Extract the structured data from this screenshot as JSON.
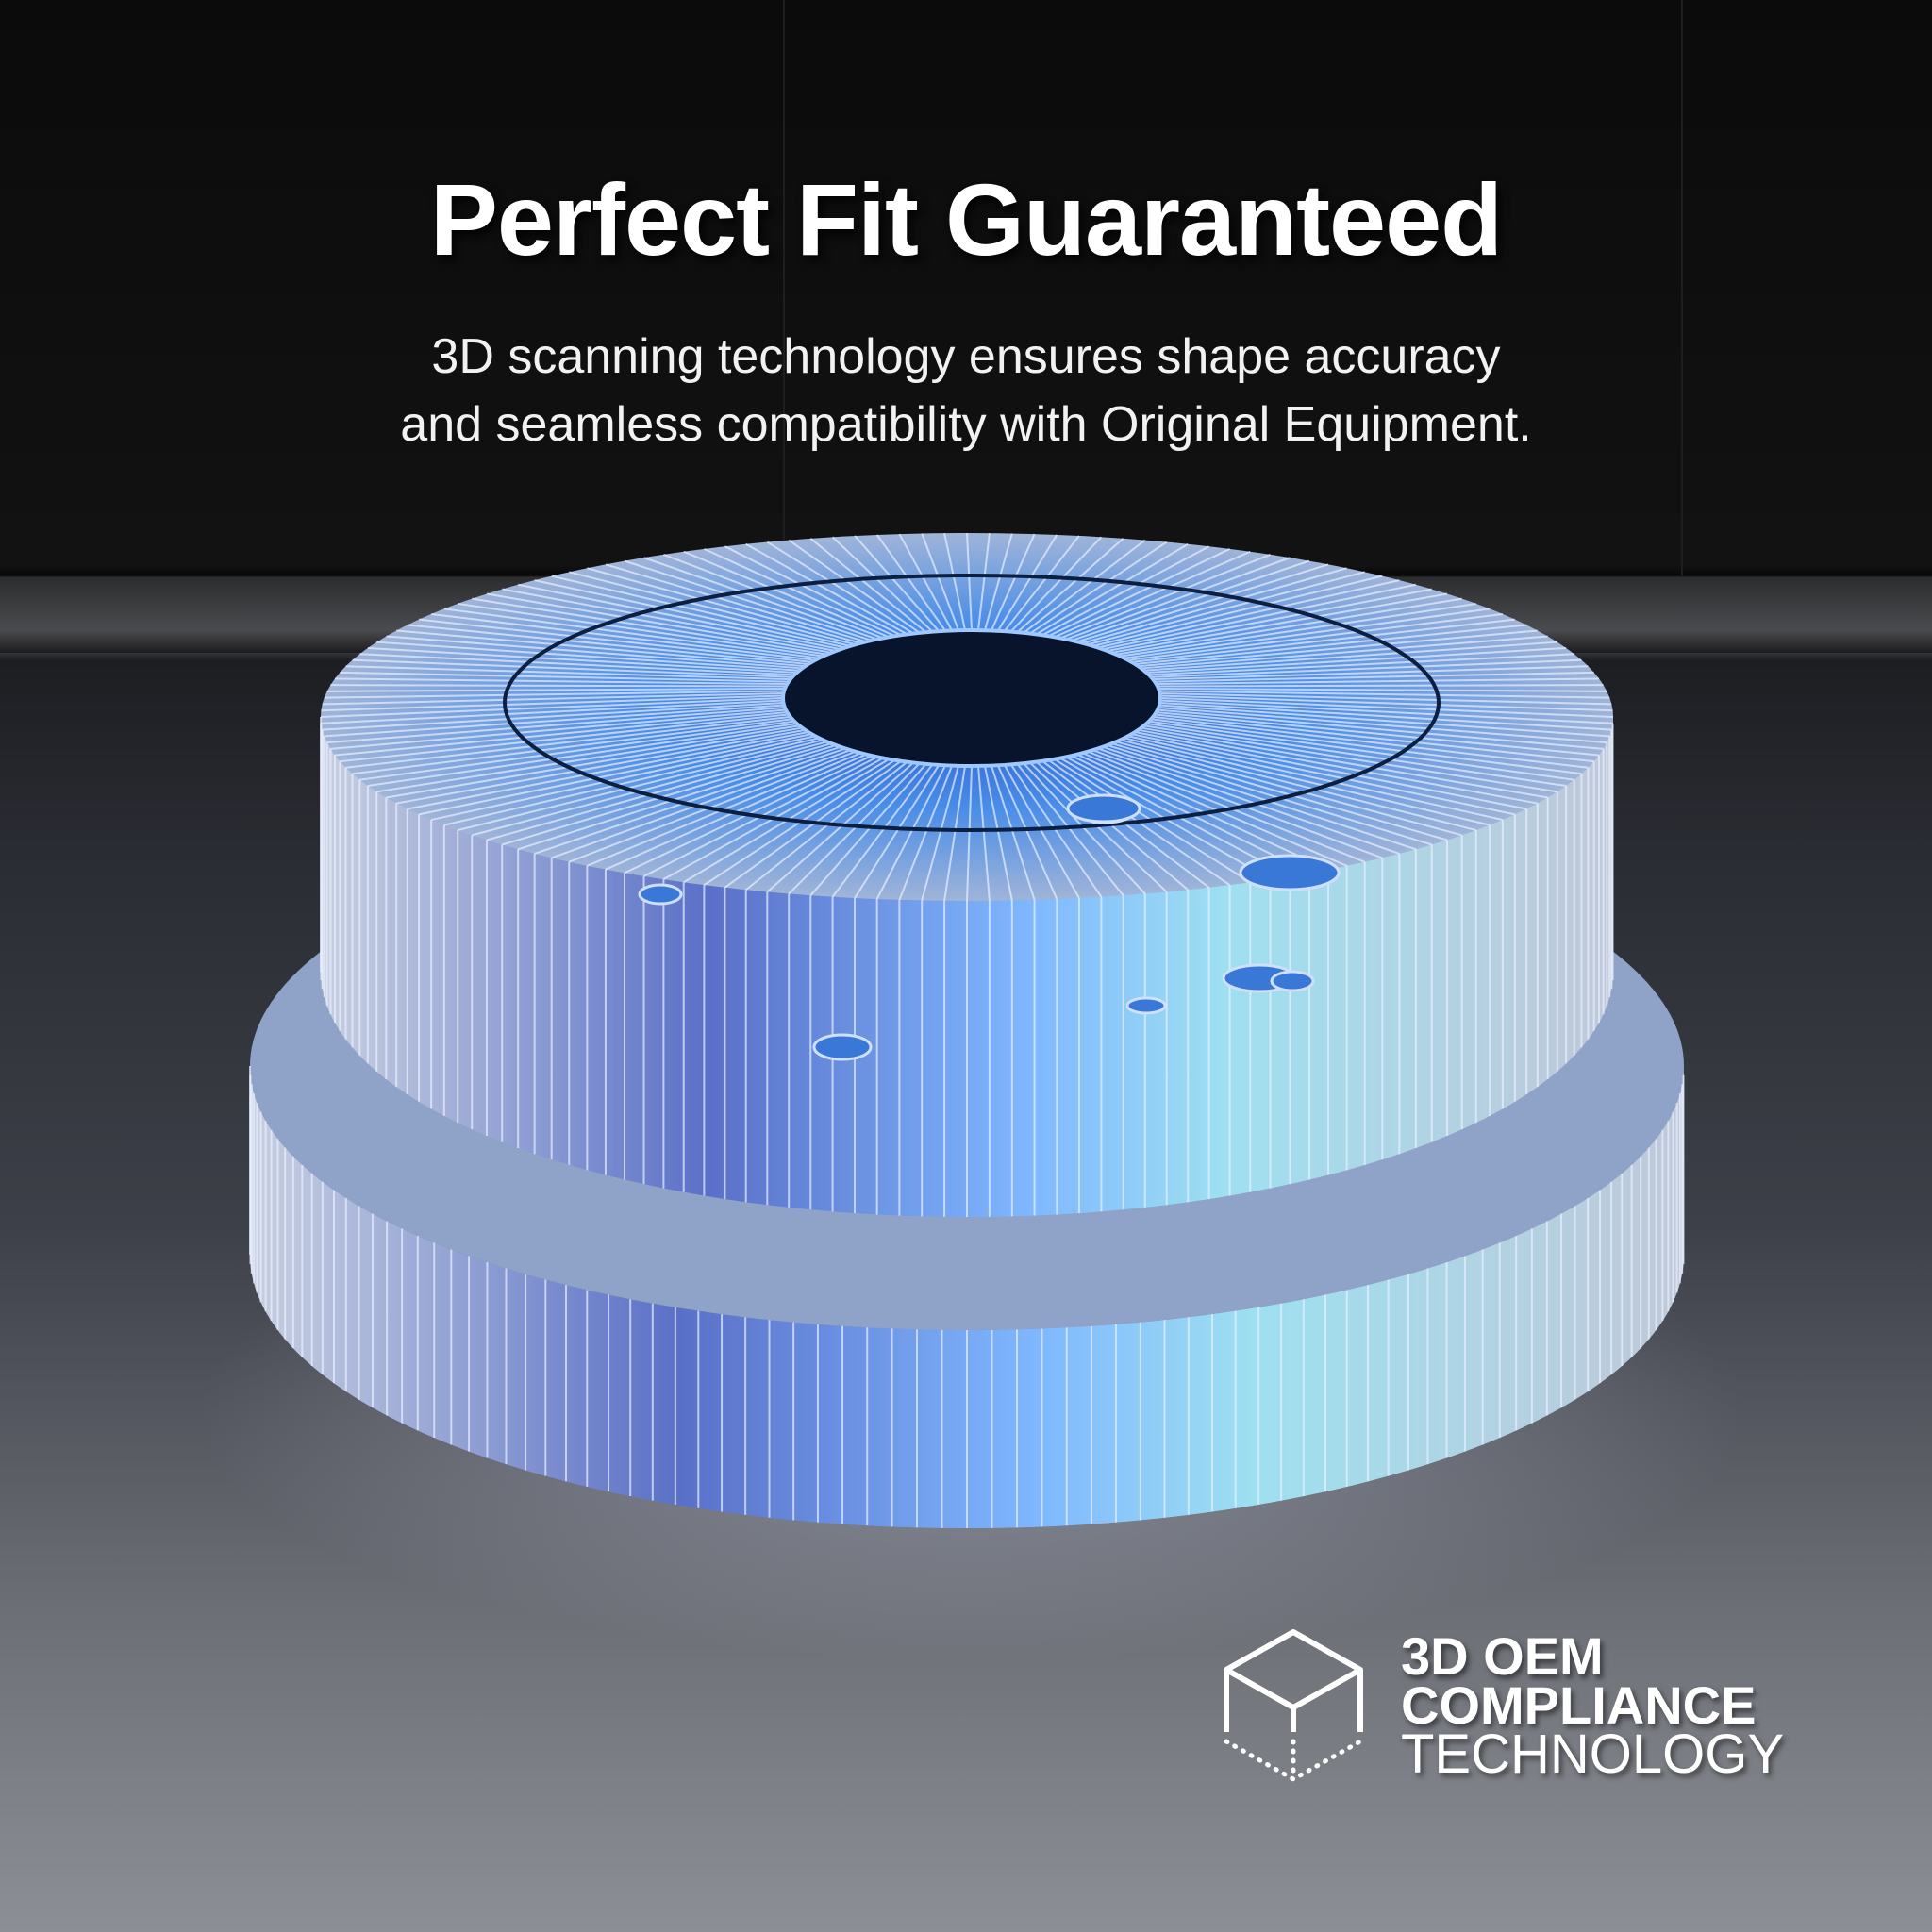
{
  "headline": "Perfect Fit Guaranteed",
  "subtitle": {
    "line1": "3D scanning technology ensures shape accuracy",
    "line2": "and seamless compatibility with Original Equipment."
  },
  "product_image": {
    "subject": "brake-rotor-3d-wireframe",
    "accent_color": "#3fa0ff"
  },
  "badge": {
    "icon": "wireframe-cube-icon",
    "line1": "3D OEM",
    "line2": "COMPLIANCE",
    "line3": "TECHNOLOGY"
  }
}
